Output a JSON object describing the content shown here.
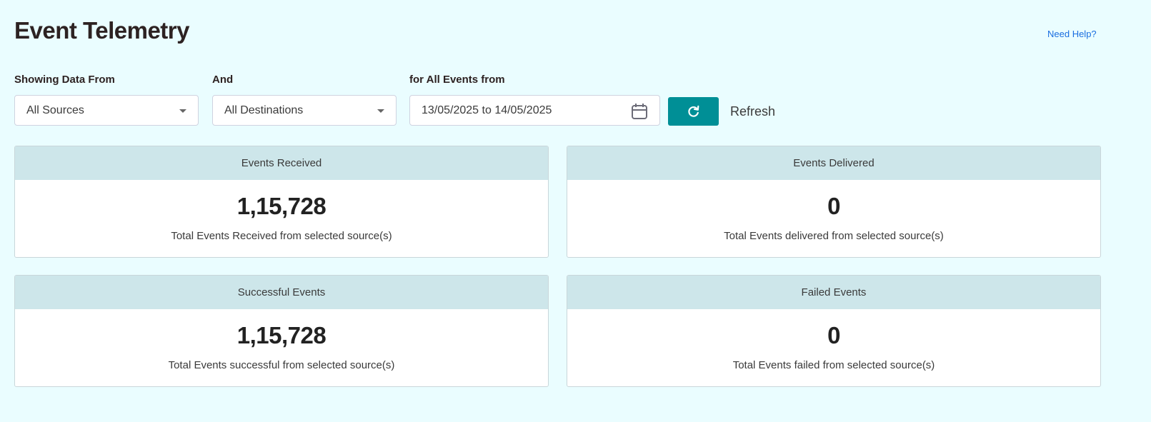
{
  "header": {
    "title": "Event Telemetry",
    "help_link": "Need Help?"
  },
  "filters": {
    "source_label": "Showing Data From",
    "source_value": "All Sources",
    "destination_label": "And",
    "destination_value": "All Destinations",
    "date_label": "for All Events from",
    "date_value": "13/05/2025 to 14/05/2025",
    "refresh_label": "Refresh"
  },
  "colors": {
    "accent": "#008f96",
    "background": "#eafdff",
    "card_header": "#cde6ea",
    "link": "#1a6ee0"
  },
  "cards": [
    {
      "title": "Events Received",
      "value": "1,15,728",
      "description": "Total Events Received from selected source(s)"
    },
    {
      "title": "Events Delivered",
      "value": "0",
      "description": "Total Events delivered from selected source(s)"
    },
    {
      "title": "Successful Events",
      "value": "1,15,728",
      "description": "Total Events successful from selected source(s)"
    },
    {
      "title": "Failed Events",
      "value": "0",
      "description": "Total Events failed from selected source(s)"
    }
  ]
}
